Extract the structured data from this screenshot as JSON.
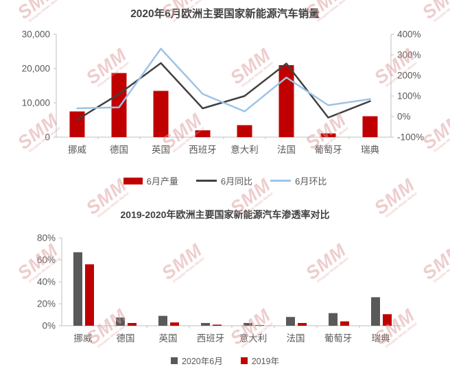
{
  "watermark": {
    "text": "SMM",
    "subtext": "Shanghai Metals Market",
    "color": "#DE9D9D"
  },
  "colors": {
    "bar_red": "#C00000",
    "line_dark": "#404040",
    "line_blue": "#9DC3E6",
    "bar_gray": "#595959",
    "axis_line": "#BFBFBF",
    "axis_text": "#595959",
    "title_text": "#404040"
  },
  "chart_data": [
    {
      "type": "bar",
      "subtype": "combo-bar-line",
      "title": "2020年6月欧洲主要国家新能源汽车销量",
      "categories": [
        "挪威",
        "德国",
        "英国",
        "西班牙",
        "意大利",
        "法国",
        "葡萄牙",
        "瑞典"
      ],
      "series": [
        {
          "name": "6月产量",
          "kind": "bar",
          "axis": "left",
          "color": "#C00000",
          "values": [
            7500,
            18700,
            13500,
            2000,
            3500,
            21000,
            1100,
            6100
          ]
        },
        {
          "name": "6月同比",
          "kind": "line",
          "axis": "right",
          "color": "#404040",
          "values": [
            -15,
            110,
            260,
            40,
            100,
            258,
            -5,
            75
          ]
        },
        {
          "name": "6月环比",
          "kind": "line",
          "axis": "right",
          "color": "#9DC3E6",
          "values": [
            40,
            45,
            330,
            110,
            25,
            190,
            55,
            85
          ]
        }
      ],
      "left_axis": {
        "min": 0,
        "max": 30000,
        "ticks": [
          "0",
          "10,000",
          "20,000",
          "30,000"
        ]
      },
      "right_axis": {
        "min": -100,
        "max": 400,
        "ticks": [
          "-100%",
          "0%",
          "100%",
          "200%",
          "300%",
          "400%"
        ]
      },
      "legend_position": "bottom",
      "grid": false
    },
    {
      "type": "bar",
      "subtype": "grouped-bar",
      "title": "2019-2020年欧洲主要国家新能源汽车渗透率对比",
      "categories": [
        "挪威",
        "德国",
        "英国",
        "西班牙",
        "意大利",
        "法国",
        "葡萄牙",
        "瑞典"
      ],
      "series": [
        {
          "name": "2020年6月",
          "color": "#595959",
          "values": [
            67,
            7.5,
            9,
            2.5,
            2.5,
            8,
            11.5,
            26
          ]
        },
        {
          "name": "2019年",
          "color": "#C00000",
          "values": [
            56,
            2.5,
            3,
            1,
            0.5,
            2.5,
            4,
            10.5
          ]
        }
      ],
      "y_axis": {
        "min": 0,
        "max": 80,
        "ticks": [
          "0%",
          "20%",
          "40%",
          "60%",
          "80%"
        ],
        "unit": "%"
      },
      "legend_position": "bottom",
      "grid": false
    }
  ]
}
